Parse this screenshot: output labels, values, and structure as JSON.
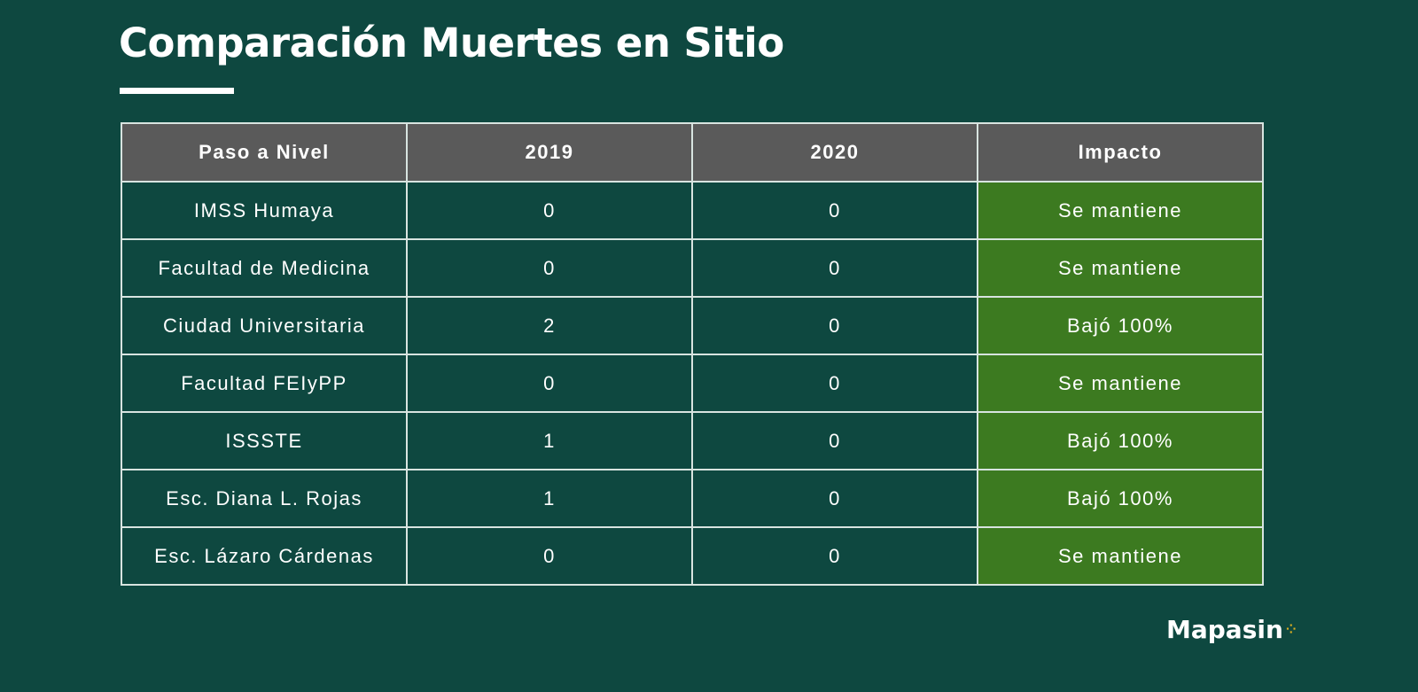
{
  "title": "Comparación Muertes en Sitio",
  "table": {
    "headers": [
      "Paso a Nivel",
      "2019",
      "2020",
      "Impacto"
    ],
    "rows": [
      [
        "IMSS Humaya",
        "0",
        "0",
        "Se mantiene"
      ],
      [
        "Facultad de Medicina",
        "0",
        "0",
        "Se mantiene"
      ],
      [
        "Ciudad Universitaria",
        "2",
        "0",
        "Bajó 100%"
      ],
      [
        "Facultad FEIyPP",
        "0",
        "0",
        "Se mantiene"
      ],
      [
        "ISSSTE",
        "1",
        "0",
        "Bajó 100%"
      ],
      [
        "Esc. Diana L. Rojas",
        "1",
        "0",
        "Bajó 100%"
      ],
      [
        "Esc. Lázaro Cárdenas",
        "0",
        "0",
        "Se mantiene"
      ]
    ]
  },
  "logo": "Mapasin",
  "colors": {
    "background": "#0e4840",
    "header": "#5a5a5a",
    "impact": "#3c7a20"
  }
}
